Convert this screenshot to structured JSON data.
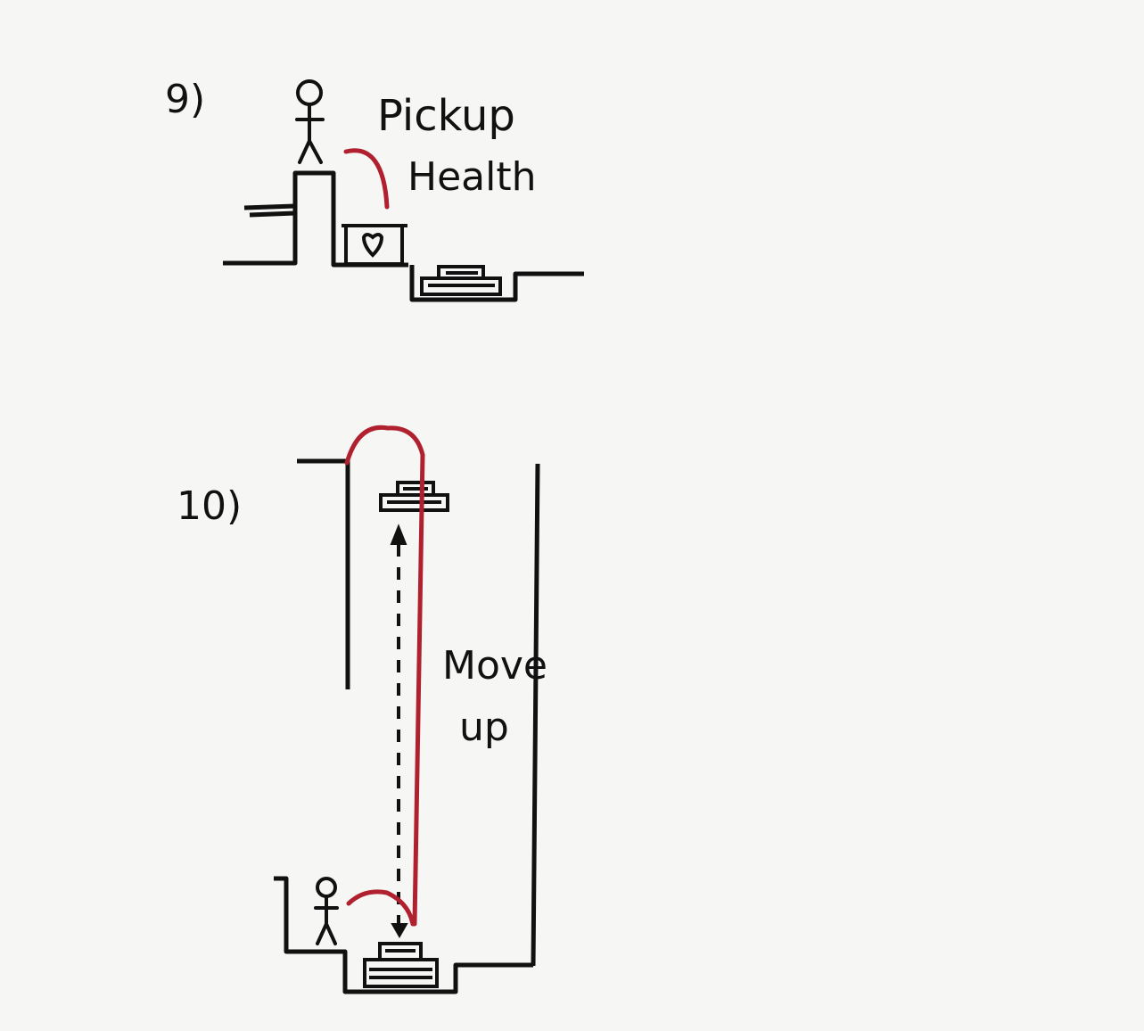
{
  "colors": {
    "paper": "#f6f6f4",
    "ink": "#111111",
    "red": "#b0202e"
  },
  "panels": [
    {
      "number_label": "9)",
      "caption_line1": "Pickup",
      "caption_line2": "Health",
      "icons": [
        "stick-figure-icon",
        "heart-crate-icon",
        "pressure-pad-icon"
      ]
    },
    {
      "number_label": "10)",
      "caption_line1": "Move",
      "caption_line2": "up",
      "icons": [
        "stick-figure-icon",
        "pressure-pad-icon",
        "elevator-platform-icon",
        "dashed-up-arrow-icon"
      ]
    }
  ]
}
